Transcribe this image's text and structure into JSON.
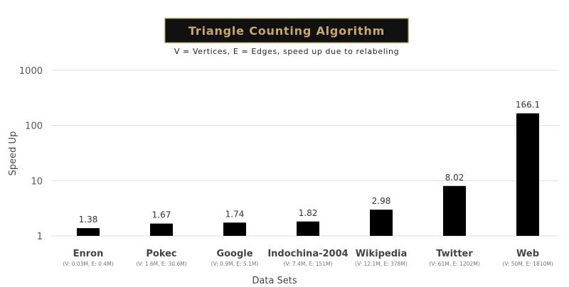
{
  "chart_data": {
    "type": "bar",
    "title": "Triangle Counting Algorithm",
    "subtitle": "V = Vertices, E = Edges, speed up due to relabeling",
    "xlabel": "Data Sets",
    "ylabel": "Speed Up",
    "yscale": "log",
    "ylim": [
      1,
      1000
    ],
    "yticks": [
      "1",
      "10",
      "100",
      "1000"
    ],
    "grid": true,
    "legend": "none",
    "categories": [
      "Enron",
      "Pokec",
      "Google",
      "Indochina-2004",
      "Wikipedia",
      "Twitter",
      "Web"
    ],
    "category_details": [
      "(V: 0.03M, E: 0.4M)",
      "(V: 1.6M, E: 30.6M)",
      "(V: 0.9M, E: 5.1M)",
      "(V: 7.4M, E: 151M)",
      "(V: 12.1M, E: 378M)",
      "(V: 61M, E: 1202M)",
      "(V: 50M, E: 1810M)"
    ],
    "values": [
      1.38,
      1.67,
      1.74,
      1.82,
      2.98,
      8.02,
      166.1
    ],
    "value_labels": [
      "1.38",
      "1.67",
      "1.74",
      "1.82",
      "2.98",
      "8.02",
      "166.1"
    ],
    "colors": {
      "bar": "#000000",
      "title_bg": "#111111",
      "title_text": "#c9a86a",
      "title_border": "#a88a4a"
    }
  }
}
